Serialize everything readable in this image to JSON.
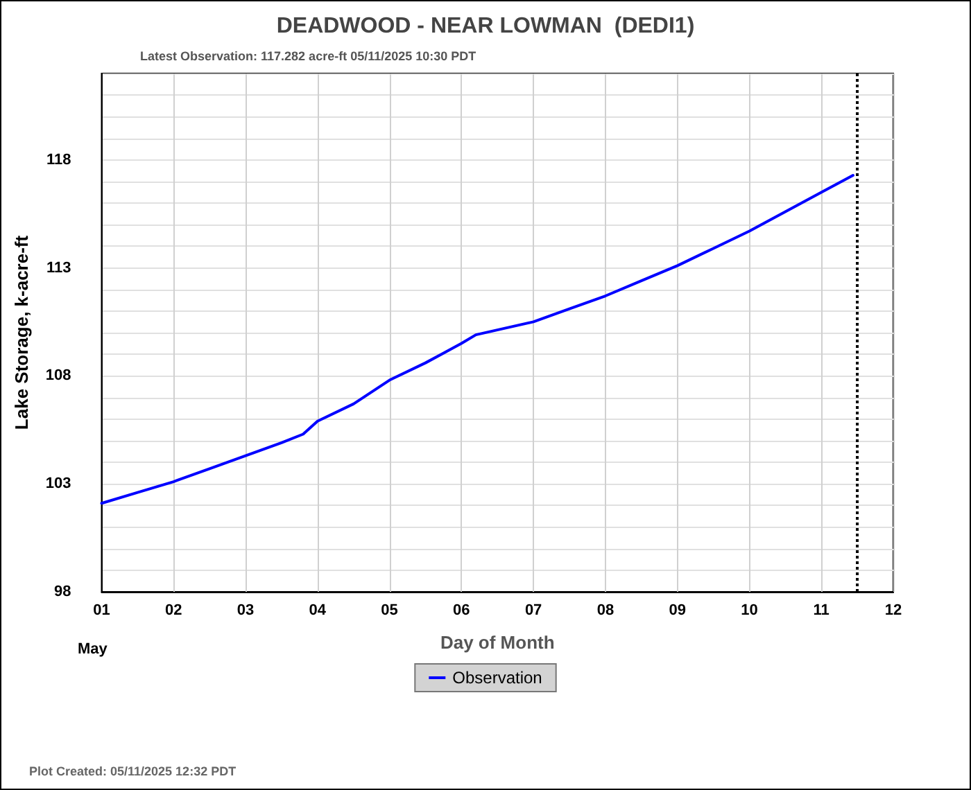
{
  "chart_data": {
    "type": "line",
    "title": "DEADWOOD - NEAR LOWMAN  (DEDI1)",
    "xlabel": "Day of Month",
    "ylabel": "Lake Storage, k-acre-ft",
    "annotations": [
      "Latest Observation: 117.282 acre-ft 05/11/2025 10:30 PDT",
      "May",
      "Plot Created: 05/11/2025 12:32 PDT"
    ],
    "x": [
      1,
      1.5,
      2,
      2.5,
      3,
      3.5,
      3.8,
      4,
      4.5,
      5,
      5.5,
      6,
      6.2,
      7,
      7.5,
      8,
      8.5,
      9,
      9.5,
      10,
      10.5,
      11,
      11.44
    ],
    "series": [
      {
        "name": "Observation",
        "color": "#0000ff",
        "values": [
          102.1,
          102.6,
          103.1,
          103.7,
          104.3,
          104.9,
          105.3,
          105.9,
          106.7,
          107.8,
          108.6,
          109.5,
          109.9,
          110.5,
          111.1,
          111.7,
          112.4,
          113.1,
          113.9,
          114.7,
          115.6,
          116.5,
          117.282
        ]
      }
    ],
    "xlim": [
      1,
      12
    ],
    "xticks": [
      {
        "value": 1,
        "label": "01"
      },
      {
        "value": 2,
        "label": "02"
      },
      {
        "value": 3,
        "label": "03"
      },
      {
        "value": 4,
        "label": "04"
      },
      {
        "value": 5,
        "label": "05"
      },
      {
        "value": 6,
        "label": "06"
      },
      {
        "value": 7,
        "label": "07"
      },
      {
        "value": 8,
        "label": "08"
      },
      {
        "value": 9,
        "label": "09"
      },
      {
        "value": 10,
        "label": "10"
      },
      {
        "value": 11,
        "label": "11"
      },
      {
        "value": 12,
        "label": "12"
      }
    ],
    "ylim": [
      98,
      122
    ],
    "yticks": [
      98,
      {
        "value": 99,
        "label": null
      },
      {
        "value": 100,
        "label": null
      },
      {
        "value": 101,
        "label": null
      },
      {
        "value": 102,
        "label": null
      },
      103,
      {
        "value": 104,
        "label": null
      },
      {
        "value": 105,
        "label": null
      },
      {
        "value": 106,
        "label": null
      },
      {
        "value": 107,
        "label": null
      },
      108,
      {
        "value": 109,
        "label": null
      },
      {
        "value": 110,
        "label": null
      },
      {
        "value": 111,
        "label": null
      },
      {
        "value": 112,
        "label": null
      },
      113,
      {
        "value": 114,
        "label": null
      },
      {
        "value": 115,
        "label": null
      },
      {
        "value": 116,
        "label": null
      },
      {
        "value": 117,
        "label": null
      },
      118,
      {
        "value": 119,
        "label": null
      },
      {
        "value": 120,
        "label": null
      },
      {
        "value": 121,
        "label": null
      },
      {
        "value": 122,
        "label": null
      }
    ],
    "ref_lines": [
      {
        "axis": "x",
        "value": 11.5,
        "color": "#000000",
        "line_style": "dotted"
      }
    ],
    "grid": true,
    "legend": "bottom",
    "marker": "none",
    "line_style": "solid"
  }
}
